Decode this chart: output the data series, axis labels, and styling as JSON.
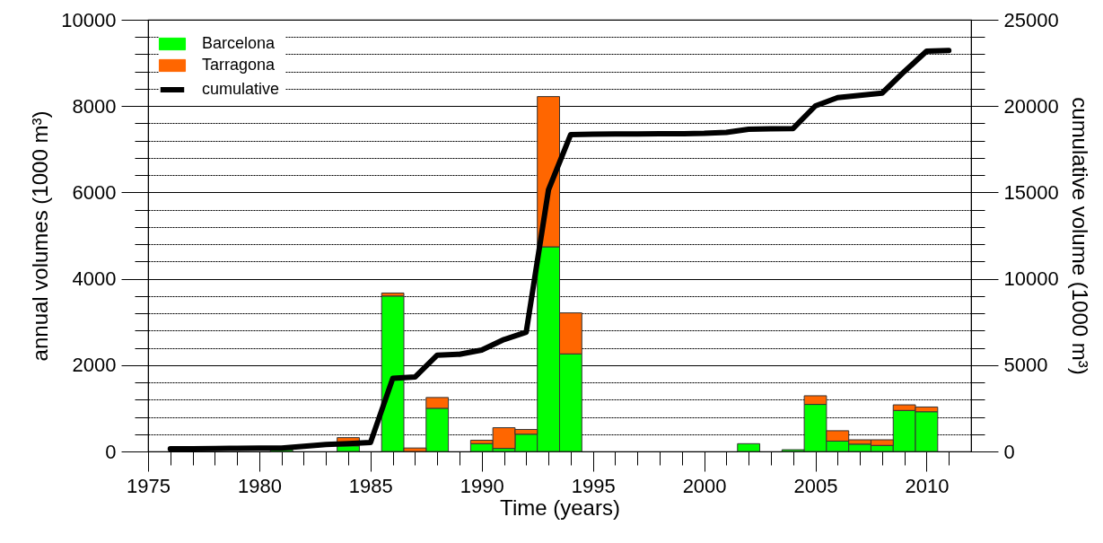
{
  "chart_data": {
    "type": "bar",
    "stacked": true,
    "xlabel": "Time (years)",
    "ylabel": "annual volumes (1000 m³)",
    "y2label": "cumulative volume (1000 m³)",
    "x": [
      1981,
      1984,
      1986,
      1987,
      1988,
      1990,
      1991,
      1992,
      1993,
      1994,
      2002,
      2004,
      2005,
      2006,
      2007,
      2008,
      2009,
      2010
    ],
    "series": [
      {
        "name": "Barcelona",
        "color": "#00ff00",
        "values": [
          40,
          130,
          3600,
          null,
          1000,
          180,
          70,
          400,
          4740,
          2260,
          180,
          40,
          1090,
          240,
          170,
          140,
          950,
          920
        ]
      },
      {
        "name": "Tarragona",
        "color": "#ff6600",
        "values": [
          null,
          190,
          70,
          80,
          250,
          80,
          480,
          110,
          3480,
          950,
          null,
          null,
          200,
          240,
          100,
          130,
          130,
          110
        ]
      },
      {
        "name": "cumulative",
        "type": "line",
        "axis": "y2",
        "color": "#000000",
        "x": [
          1976,
          1977,
          1978,
          1979,
          1980,
          1981,
          1982,
          1983,
          1984,
          1985,
          1986,
          1987,
          1988,
          1989,
          1990,
          1991,
          1992,
          1993,
          1994,
          1995,
          1996,
          1997,
          1998,
          1999,
          2000,
          2001,
          2002,
          2003,
          2004,
          2005,
          2006,
          2007,
          2008,
          2009,
          2010,
          2011
        ],
        "values": [
          150,
          160,
          170,
          180,
          190,
          200,
          300,
          400,
          460,
          520,
          4230,
          4310,
          5580,
          5630,
          5870,
          6480,
          6910,
          15140,
          18350,
          18370,
          18380,
          18390,
          18400,
          18400,
          18420,
          18480,
          18660,
          18680,
          18700,
          20010,
          20490,
          20620,
          20750,
          22000,
          23180,
          23220
        ]
      }
    ],
    "xlim": [
      1975,
      2012
    ],
    "xticks": [
      1975,
      {
        "value": 1976,
        "label": null
      },
      {
        "value": 1977,
        "label": null
      },
      {
        "value": 1978,
        "label": null
      },
      {
        "value": 1979,
        "label": null
      },
      1980,
      {
        "value": 1981,
        "label": null
      },
      {
        "value": 1982,
        "label": null
      },
      {
        "value": 1983,
        "label": null
      },
      {
        "value": 1984,
        "label": null
      },
      1985,
      {
        "value": 1986,
        "label": null
      },
      {
        "value": 1987,
        "label": null
      },
      {
        "value": 1988,
        "label": null
      },
      {
        "value": 1989,
        "label": null
      },
      1990,
      {
        "value": 1991,
        "label": null
      },
      {
        "value": 1992,
        "label": null
      },
      {
        "value": 1993,
        "label": null
      },
      {
        "value": 1994,
        "label": null
      },
      1995,
      {
        "value": 1996,
        "label": null
      },
      {
        "value": 1997,
        "label": null
      },
      {
        "value": 1998,
        "label": null
      },
      {
        "value": 1999,
        "label": null
      },
      2000,
      {
        "value": 2001,
        "label": null
      },
      {
        "value": 2002,
        "label": null
      },
      {
        "value": 2003,
        "label": null
      },
      {
        "value": 2004,
        "label": null
      },
      2005,
      {
        "value": 2006,
        "label": null
      },
      {
        "value": 2007,
        "label": null
      },
      {
        "value": 2008,
        "label": null
      },
      {
        "value": 2009,
        "label": null
      },
      2010,
      {
        "value": 2011,
        "label": null
      }
    ],
    "ylim": [
      0,
      10000
    ],
    "yticks": [
      0,
      {
        "value": 400,
        "label": null
      },
      {
        "value": 800,
        "label": null
      },
      {
        "value": 1200,
        "label": null
      },
      {
        "value": 1600,
        "label": null
      },
      2000,
      {
        "value": 2400,
        "label": null
      },
      {
        "value": 2800,
        "label": null
      },
      {
        "value": 3200,
        "label": null
      },
      {
        "value": 3600,
        "label": null
      },
      4000,
      {
        "value": 4400,
        "label": null
      },
      {
        "value": 4800,
        "label": null
      },
      {
        "value": 5200,
        "label": null
      },
      {
        "value": 5600,
        "label": null
      },
      6000,
      {
        "value": 6400,
        "label": null
      },
      {
        "value": 6800,
        "label": null
      },
      {
        "value": 7200,
        "label": null
      },
      {
        "value": 7600,
        "label": null
      },
      8000,
      {
        "value": 8400,
        "label": null
      },
      {
        "value": 8800,
        "label": null
      },
      {
        "value": 9200,
        "label": null
      },
      {
        "value": 9600,
        "label": null
      },
      10000
    ],
    "y2lim": [
      0,
      25000
    ],
    "y2ticks": [
      0,
      {
        "value": 1000,
        "label": null
      },
      {
        "value": 2000,
        "label": null
      },
      {
        "value": 3000,
        "label": null
      },
      {
        "value": 4000,
        "label": null
      },
      5000,
      {
        "value": 6000,
        "label": null
      },
      {
        "value": 7000,
        "label": null
      },
      {
        "value": 8000,
        "label": null
      },
      {
        "value": 9000,
        "label": null
      },
      10000,
      {
        "value": 11000,
        "label": null
      },
      {
        "value": 12000,
        "label": null
      },
      {
        "value": 13000,
        "label": null
      },
      {
        "value": 14000,
        "label": null
      },
      15000,
      {
        "value": 16000,
        "label": null
      },
      {
        "value": 17000,
        "label": null
      },
      {
        "value": 18000,
        "label": null
      },
      {
        "value": 19000,
        "label": null
      },
      20000,
      {
        "value": 21000,
        "label": null
      },
      {
        "value": 22000,
        "label": null
      },
      {
        "value": 23000,
        "label": null
      },
      {
        "value": 24000,
        "label": null
      },
      25000
    ],
    "grid": "y",
    "legend": "top left"
  }
}
